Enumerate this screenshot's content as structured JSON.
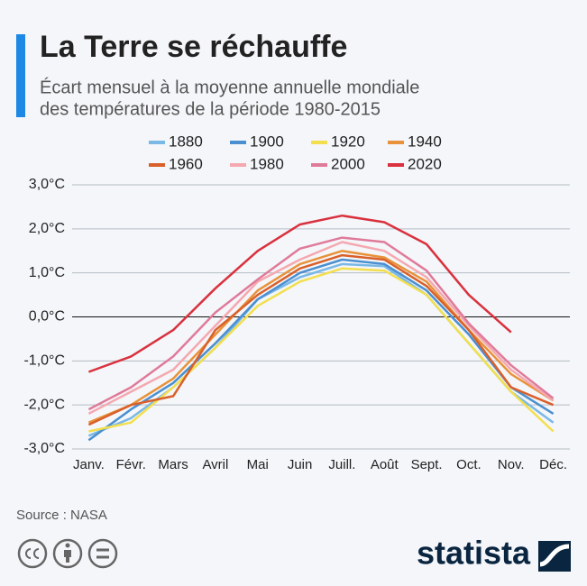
{
  "chart_data": {
    "type": "line",
    "title": "La Terre se réchauffe",
    "subtitle": [
      "Écart mensuel à la moyenne annuelle mondiale",
      "des températures de la période 1980-2015"
    ],
    "categories": [
      "Janv.",
      "Févr.",
      "Mars",
      "Avril",
      "Mai",
      "Juin",
      "Juill.",
      "Août",
      "Sept.",
      "Oct.",
      "Nov.",
      "Déc."
    ],
    "series": [
      {
        "name": "1880",
        "color": "#7ab8e6",
        "values": [
          -2.7,
          -2.3,
          -1.6,
          -0.7,
          0.4,
          0.9,
          1.2,
          1.15,
          0.5,
          -0.6,
          -1.7,
          -2.4
        ]
      },
      {
        "name": "1900",
        "color": "#4a8fd0",
        "values": [
          -2.8,
          -2.1,
          -1.5,
          -0.6,
          0.4,
          1.0,
          1.3,
          1.2,
          0.6,
          -0.4,
          -1.6,
          -2.2
        ]
      },
      {
        "name": "1920",
        "color": "#f3df4d",
        "values": [
          -2.6,
          -2.4,
          -1.6,
          -0.7,
          0.25,
          0.8,
          1.1,
          1.05,
          0.5,
          -0.6,
          -1.7,
          -2.6
        ]
      },
      {
        "name": "1940",
        "color": "#e8923a",
        "values": [
          -2.4,
          -2.0,
          -1.4,
          -0.4,
          0.6,
          1.2,
          1.5,
          1.35,
          0.8,
          -0.3,
          -1.3,
          -1.9
        ]
      },
      {
        "name": "1960",
        "color": "#d9602a",
        "values": [
          -2.45,
          -2.0,
          -1.8,
          -0.3,
          0.5,
          1.1,
          1.4,
          1.3,
          0.7,
          -0.3,
          -1.6,
          -2.0
        ]
      },
      {
        "name": "1980",
        "color": "#f5a8b0",
        "values": [
          -2.2,
          -1.7,
          -1.2,
          -0.2,
          0.8,
          1.3,
          1.7,
          1.5,
          0.9,
          -0.2,
          -1.2,
          -1.9
        ]
      },
      {
        "name": "2000",
        "color": "#e07a9a",
        "values": [
          -2.1,
          -1.6,
          -0.9,
          0.1,
          0.85,
          1.55,
          1.8,
          1.7,
          1.05,
          -0.15,
          -1.1,
          -1.85
        ]
      },
      {
        "name": "2020",
        "color": "#d9313e",
        "values": [
          -1.25,
          -0.9,
          -0.3,
          0.65,
          1.5,
          2.1,
          2.3,
          2.15,
          1.65,
          0.5,
          -0.35,
          null
        ]
      }
    ],
    "ylim": [
      -3,
      3
    ],
    "yticks": [
      {
        "value": 3,
        "label": "3,0°C"
      },
      {
        "value": 2,
        "label": "2,0°C"
      },
      {
        "value": 1,
        "label": "1,0°C"
      },
      {
        "value": 0,
        "label": "0,0°C"
      },
      {
        "value": -1,
        "label": "-1,0°C"
      },
      {
        "value": -2,
        "label": "-2,0°C"
      },
      {
        "value": -3,
        "label": "-3,0°C"
      }
    ],
    "grid": true,
    "source": "Source : NASA",
    "brand": "statista"
  }
}
